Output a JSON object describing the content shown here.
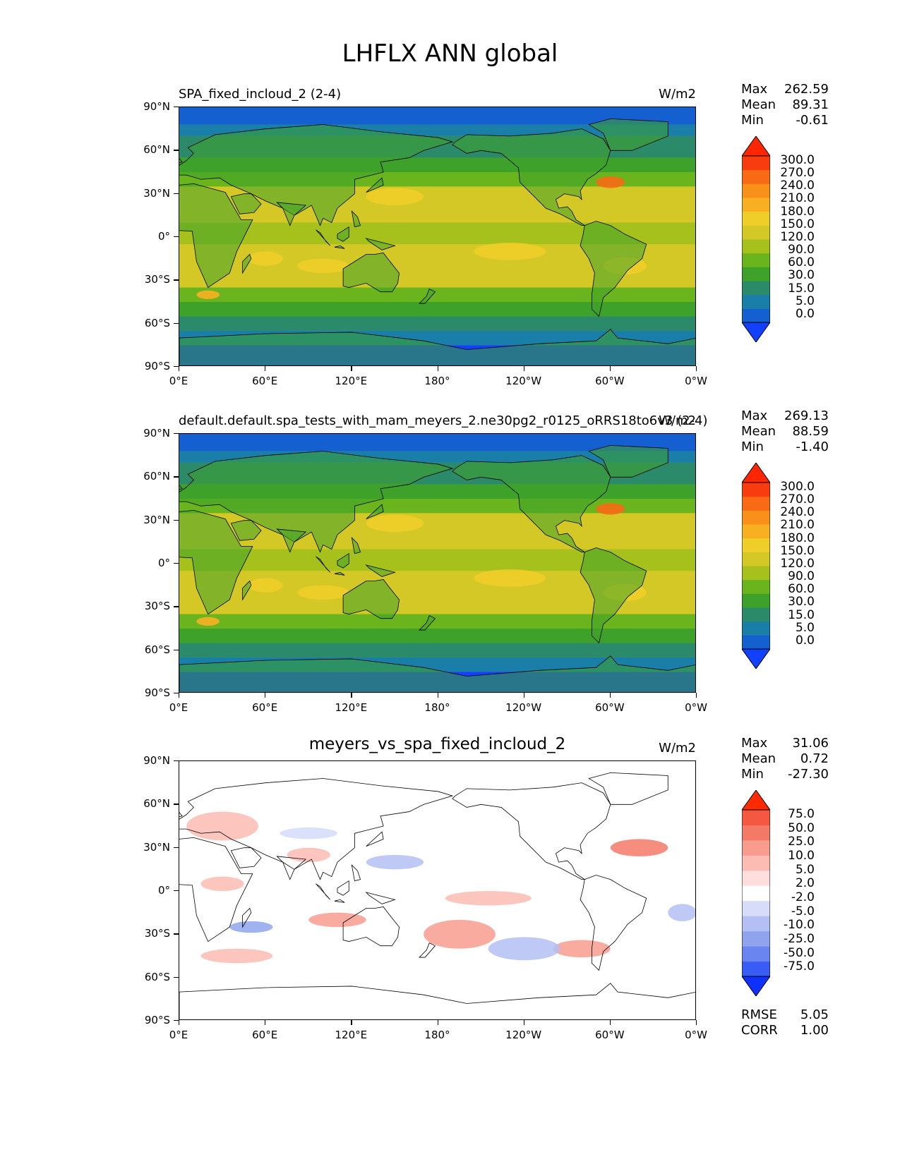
{
  "figure": {
    "title": "LHFLX ANN global"
  },
  "panels": [
    {
      "id": "test",
      "title": "SPA_fixed_incloud_2 (2-4)",
      "title_style": "left",
      "units": "W/m2",
      "stats": {
        "Max": "262.59",
        "Mean": "89.31",
        "Min": "-0.61"
      },
      "colorbar_levels": [
        "300.0",
        "270.0",
        "240.0",
        "210.0",
        "180.0",
        "150.0",
        "120.0",
        "90.0",
        "60.0",
        "30.0",
        "15.0",
        "5.0",
        "0.0"
      ],
      "colormap": "sequential"
    },
    {
      "id": "ref",
      "title": "default.default.spa_tests_with_mam_meyers_2.ne30pg2_r0125_oRRS18to6v3 (2-4)",
      "title_style": "left",
      "units": "W/m2",
      "stats": {
        "Max": "269.13",
        "Mean": "88.59",
        "Min": "-1.40"
      },
      "colorbar_levels": [
        "300.0",
        "270.0",
        "240.0",
        "210.0",
        "180.0",
        "150.0",
        "120.0",
        "90.0",
        "60.0",
        "30.0",
        "15.0",
        "5.0",
        "0.0"
      ],
      "colormap": "sequential"
    },
    {
      "id": "diff",
      "title": "meyers_vs_spa_fixed_incloud_2",
      "title_style": "center",
      "units": "W/m2",
      "stats": {
        "Max": "31.06",
        "Mean": "0.72",
        "Min": "-27.30"
      },
      "colorbar_levels": [
        "75.0",
        "50.0",
        "25.0",
        "10.0",
        "5.0",
        "2.0",
        "-2.0",
        "-5.0",
        "-10.0",
        "-25.0",
        "-50.0",
        "-75.0"
      ],
      "colormap": "diverging",
      "extra_stats": {
        "RMSE": "5.05",
        "CORR": "1.00"
      }
    }
  ],
  "axes": {
    "lat_ticks": [
      "90°N",
      "60°N",
      "30°N",
      "0°",
      "30°S",
      "60°S",
      "90°S"
    ],
    "lon_ticks": [
      "0°E",
      "60°E",
      "120°E",
      "180°",
      "120°W",
      "60°W",
      "0°W"
    ]
  },
  "colors": {
    "sequential": [
      "#1140ff",
      "#1460d0",
      "#1a7fa8",
      "#2a8a6a",
      "#3ea22a",
      "#6ab41e",
      "#a6c01c",
      "#d4c826",
      "#f0ce2a",
      "#f8b022",
      "#f8901a",
      "#f86a14",
      "#f83c10",
      "#ff2600"
    ],
    "diverging": [
      "#1030ff",
      "#3a5cf6",
      "#6a84f0",
      "#90a4ee",
      "#b4c0f4",
      "#d6dcfa",
      "#ffffff",
      "#ffdede",
      "#fcbcb4",
      "#f89c8e",
      "#f47a68",
      "#f45840",
      "#ff2a00"
    ]
  }
}
